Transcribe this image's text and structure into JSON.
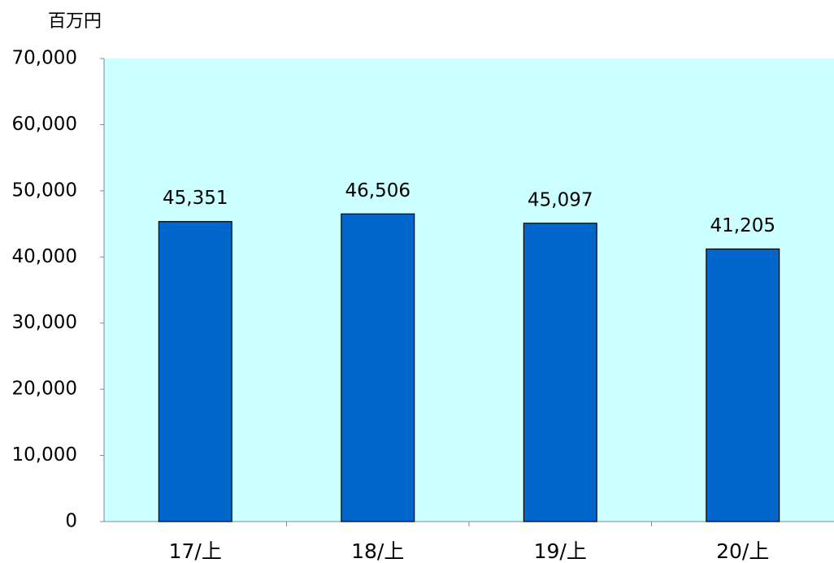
{
  "chart_data": {
    "type": "bar",
    "y_label": "百万円",
    "categories": [
      "17/上",
      "18/上",
      "19/上",
      "20/上"
    ],
    "values": [
      45351,
      46506,
      45097,
      41205
    ],
    "value_labels": [
      "45,351",
      "46,506",
      "45,097",
      "41,205"
    ],
    "color": "#0066cc",
    "plot_background": "#ccffff",
    "ylim": [
      0,
      70000
    ],
    "yticks": [
      0,
      {
        "value": 10000,
        "label": "10,000"
      },
      {
        "value": 20000,
        "label": "20,000"
      },
      {
        "value": 30000,
        "label": "30,000"
      },
      {
        "value": 40000,
        "label": "40,000"
      },
      {
        "value": 50000,
        "label": "50,000"
      },
      {
        "value": 60000,
        "label": "60,000"
      },
      {
        "value": 70000,
        "label": "70,000"
      }
    ],
    "grid": false
  }
}
